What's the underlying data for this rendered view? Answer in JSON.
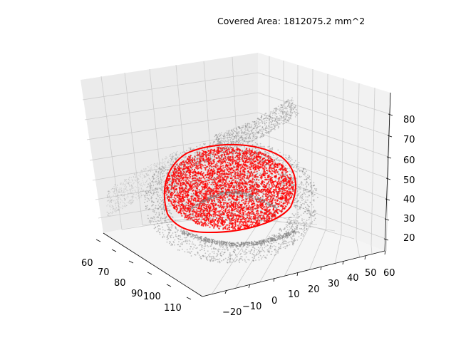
{
  "chart_data": {
    "type": "scatter",
    "projection": "3d",
    "title": "Covered Area: 1812075.2 mm^2",
    "xlabel": "",
    "ylabel": "",
    "zlabel": "",
    "xlim": [
      57,
      115
    ],
    "ylim": [
      -27,
      62
    ],
    "zlim": [
      14,
      88
    ],
    "x_ticks": [
      "60",
      "70",
      "80",
      "90",
      "100",
      "110"
    ],
    "y_ticks": [
      "−20",
      "−10",
      "0",
      "10",
      "20",
      "30",
      "40",
      "50",
      "60"
    ],
    "z_ticks": [
      "20",
      "30",
      "40",
      "50",
      "60",
      "70",
      "80"
    ],
    "grid": true,
    "series": [
      {
        "color": "#808080",
        "marker": "point-cloud"
      },
      {
        "color": "#ff0000",
        "marker": "covered-points"
      },
      {
        "color": "#ff0000",
        "marker": "boundary-outline"
      }
    ]
  },
  "colors": {
    "pane_left": "#ebebeb",
    "pane_right": "#f2f2f2",
    "pane_floor": "#f5f5f5",
    "grid": "#cccccc",
    "cloud": "#808080",
    "covered": "#ff0000"
  }
}
